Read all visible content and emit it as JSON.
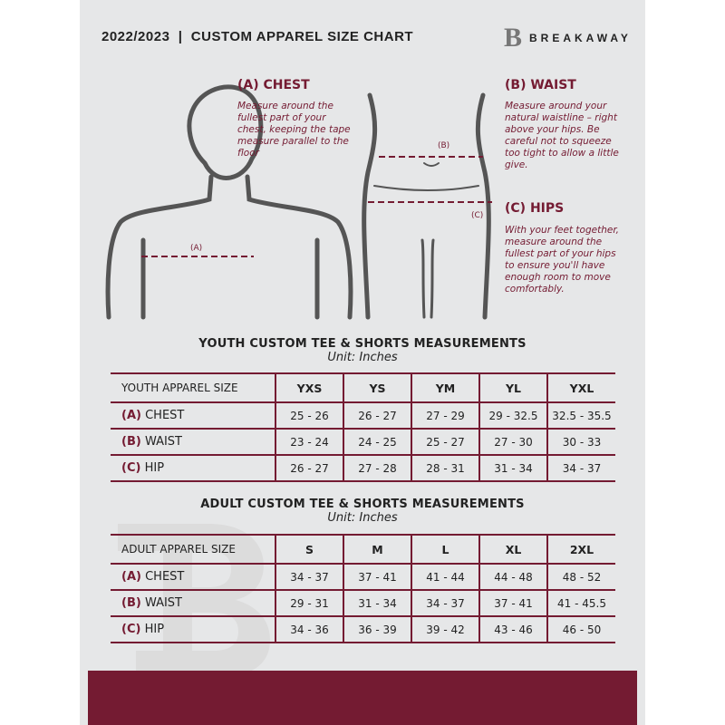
{
  "header": {
    "title": "2022/2023  |  CUSTOM APPAREL SIZE CHART",
    "logo_mark": "B",
    "brand": "BREAKAWAY"
  },
  "colors": {
    "accent": "#741b32",
    "panel": "#e6e7e8"
  },
  "measures": {
    "chest": {
      "title": "(A) CHEST",
      "desc": "Measure around the fullest part of your chest, keeping the tape measure parallel to the floor",
      "tag": "(A)"
    },
    "waist": {
      "title": "(B) WAIST",
      "desc": "Measure around your natural waistline – right above your hips. Be careful not to squeeze too tight to allow a little give.",
      "tag": "(B)"
    },
    "hips": {
      "title": "(C) HIPS",
      "desc": "With your feet together, measure around the fullest part of your hips to ensure you'll have enough room to move comfortably.",
      "tag": "(C)"
    }
  },
  "youth": {
    "title": "YOUTH CUSTOM TEE & SHORTS MEASUREMENTS",
    "unit": "Unit: Inches",
    "header": "YOUTH APPAREL SIZE",
    "sizes": [
      "YXS",
      "YS",
      "YM",
      "YL",
      "YXL"
    ],
    "rows": [
      {
        "letter": "(A)",
        "label": "CHEST",
        "values": [
          "25 - 26",
          "26 - 27",
          "27 - 29",
          "29 - 32.5",
          "32.5 - 35.5"
        ]
      },
      {
        "letter": "(B)",
        "label": "WAIST",
        "values": [
          "23 - 24",
          "24 - 25",
          "25 - 27",
          "27 - 30",
          "30 - 33"
        ]
      },
      {
        "letter": "(C)",
        "label": "HIP",
        "values": [
          "26 - 27",
          "27 - 28",
          "28 - 31",
          "31 - 34",
          "34 - 37"
        ]
      }
    ]
  },
  "adult": {
    "title": "ADULT CUSTOM TEE & SHORTS MEASUREMENTS",
    "unit": "Unit: Inches",
    "header": "ADULT APPAREL SIZE",
    "sizes": [
      "S",
      "M",
      "L",
      "XL",
      "2XL"
    ],
    "rows": [
      {
        "letter": "(A)",
        "label": "CHEST",
        "values": [
          "34 - 37",
          "37 - 41",
          "41 - 44",
          "44 - 48",
          "48 - 52"
        ]
      },
      {
        "letter": "(B)",
        "label": "WAIST",
        "values": [
          "29 - 31",
          "31 - 34",
          "34 - 37",
          "37 - 41",
          "41 - 45.5"
        ]
      },
      {
        "letter": "(C)",
        "label": "HIP",
        "values": [
          "34 - 36",
          "36 - 39",
          "39 - 42",
          "43 - 46",
          "46 - 50"
        ]
      }
    ]
  }
}
